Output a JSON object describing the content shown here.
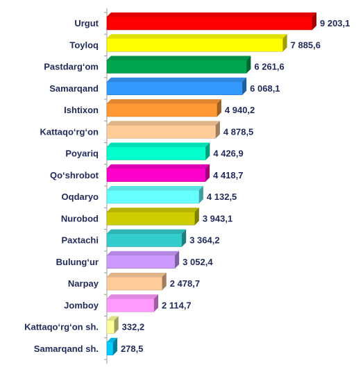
{
  "chart_data": {
    "type": "bar",
    "orientation": "horizontal",
    "style": "3d",
    "categories": [
      "Urgut",
      "Toyloq",
      "Pastdarg‘om",
      "Samarqand",
      "Ishtixon",
      "Kattaqo‘rg‘on",
      "Poyariq",
      "Qo‘shrobot",
      "Oqdaryo",
      "Nurobod",
      "Paxtachi",
      "Bulung‘ur",
      "Narpay",
      "Jomboy",
      "Kattaqo‘rg‘on sh.",
      "Samarqand sh."
    ],
    "values": [
      9203.1,
      7885.6,
      6261.6,
      6068.1,
      4940.2,
      4878.5,
      4426.9,
      4418.7,
      4132.5,
      3943.1,
      3364.2,
      3052.4,
      2478.7,
      2114.7,
      332.2,
      278.5
    ],
    "value_labels": [
      "9 203,1",
      "7 885,6",
      "6 261,6",
      "6 068,1",
      "4 940,2",
      "4 878,5",
      "4 426,9",
      "4 418,7",
      "4 132,5",
      "3 943,1",
      "3 364,2",
      "3 052,4",
      "2 478,7",
      "2 114,7",
      "332,2",
      "278,5"
    ],
    "colors": [
      "#ff0000",
      "#ffff00",
      "#00a651",
      "#3399ff",
      "#ff9933",
      "#ffcc99",
      "#00ffcc",
      "#ff00cc",
      "#66ffff",
      "#cccc00",
      "#33cccc",
      "#cc99ff",
      "#ffcc99",
      "#ff99ff",
      "#ffff99",
      "#00ccff"
    ],
    "xlim": [
      0,
      9203.1
    ],
    "grid": false,
    "legend": false,
    "title": "",
    "xlabel": "",
    "ylabel": ""
  }
}
